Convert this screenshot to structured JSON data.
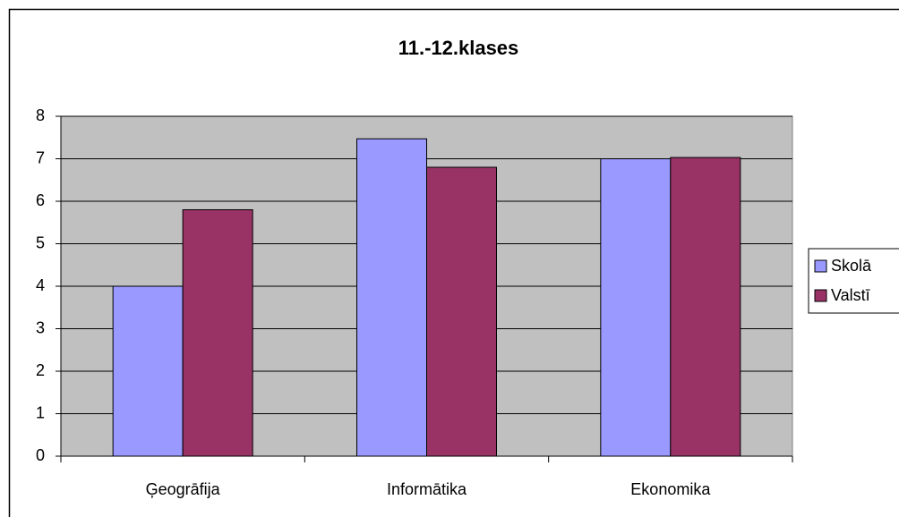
{
  "chart_data": {
    "type": "bar",
    "title": "11.-12.klases",
    "categories": [
      "Ģeogrāfija",
      "Informātika",
      "Ekonomika"
    ],
    "series": [
      {
        "name": "Skolā",
        "color": "#9999ff",
        "values": [
          4,
          7.47,
          7
        ]
      },
      {
        "name": "Valstī",
        "color": "#993366",
        "values": [
          5.8,
          6.8,
          7.03
        ]
      }
    ],
    "ylim": [
      0,
      8
    ],
    "yticks": [
      0,
      1,
      2,
      3,
      4,
      5,
      6,
      7,
      8
    ],
    "grid": true,
    "legend": "right"
  }
}
